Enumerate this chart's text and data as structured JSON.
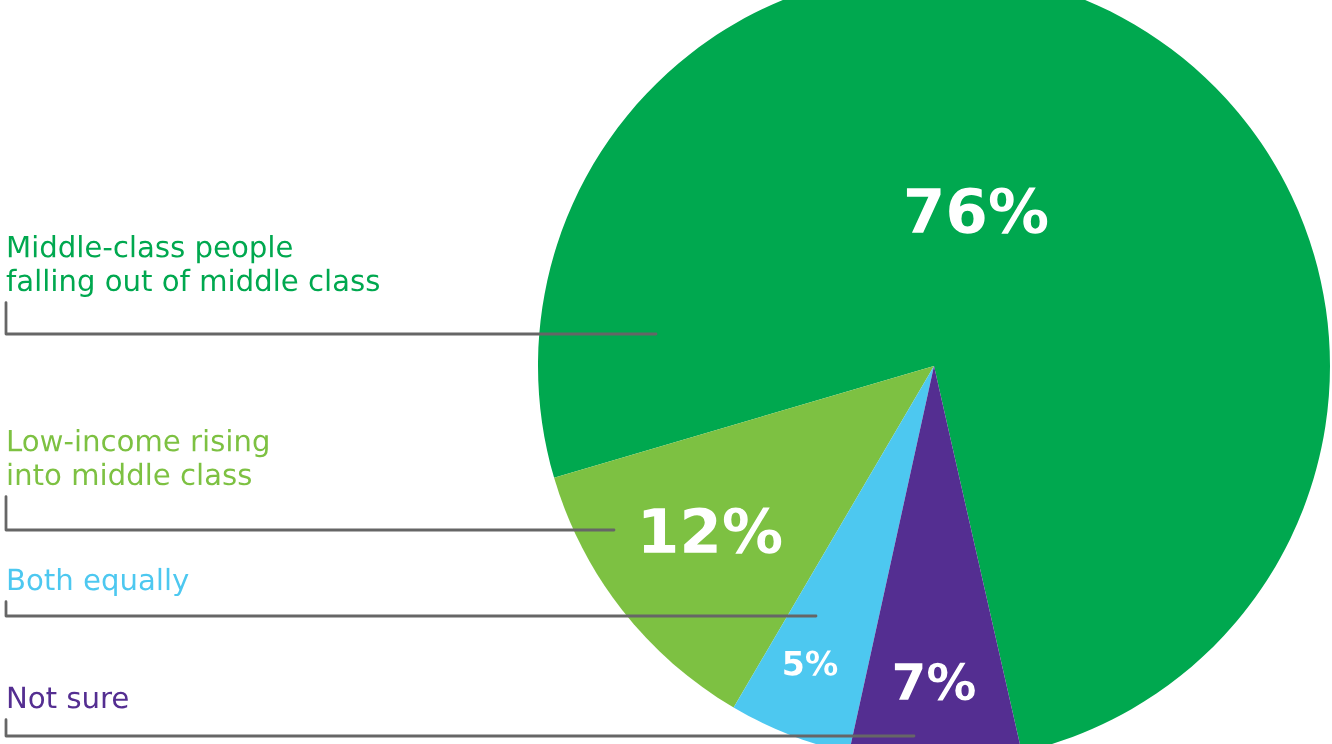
{
  "chart_data": {
    "type": "pie",
    "categories": [
      "Middle-class people\nfalling out of middle class",
      "Low-income rising\ninto middle class",
      "Both equally",
      "Not sure"
    ],
    "values": [
      76,
      12,
      5,
      7
    ],
    "colors": [
      "#00a84f",
      "#7dc142",
      "#4dc8f0",
      "#542e91"
    ],
    "value_labels": [
      "76%",
      "12%",
      "5%",
      "7%"
    ]
  }
}
